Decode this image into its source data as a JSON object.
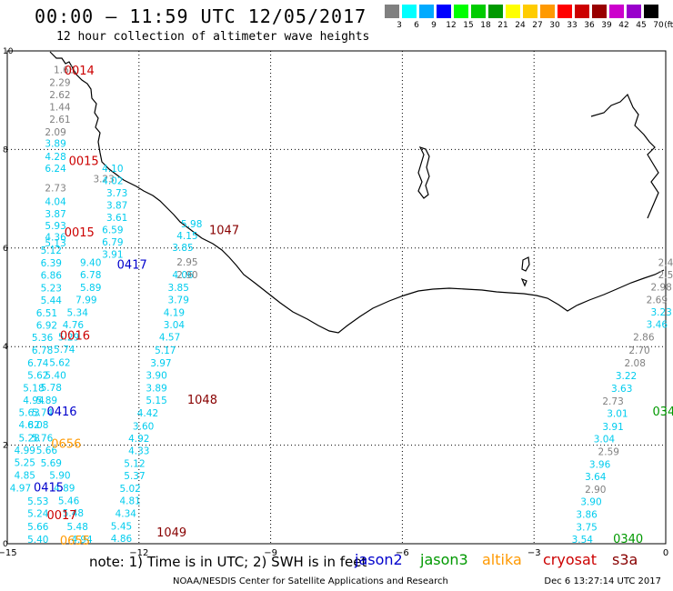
{
  "header": {
    "title": "00:00 – 11:59 UTC 12/05/2017",
    "subtitle": "12 hour collection of altimeter wave heights"
  },
  "legend": {
    "unit": "(ft)",
    "bins": [
      {
        "label": "3",
        "color": "#808080"
      },
      {
        "label": "6",
        "color": "#00ffff"
      },
      {
        "label": "9",
        "color": "#00aaff"
      },
      {
        "label": "12",
        "color": "#0000ff"
      },
      {
        "label": "15",
        "color": "#00ff00"
      },
      {
        "label": "18",
        "color": "#00cc00"
      },
      {
        "label": "21",
        "color": "#009900"
      },
      {
        "label": "24",
        "color": "#ffff00"
      },
      {
        "label": "27",
        "color": "#ffcc00"
      },
      {
        "label": "30",
        "color": "#ff9900"
      },
      {
        "label": "33",
        "color": "#ff0000"
      },
      {
        "label": "36",
        "color": "#cc0000"
      },
      {
        "label": "39",
        "color": "#990000"
      },
      {
        "label": "42",
        "color": "#cc00cc"
      },
      {
        "label": "45",
        "color": "#9900cc"
      },
      {
        "label": "70",
        "color": "#000000"
      }
    ]
  },
  "axes": {
    "lon_ticks": [
      "−15",
      "−12",
      "−9",
      "−6",
      "−3",
      "0"
    ],
    "lat_ticks": [
      "0",
      "2",
      "4",
      "6",
      "8",
      "10"
    ],
    "lon_range": [
      -15,
      0
    ],
    "lat_range": [
      0,
      10
    ],
    "grid": true,
    "grid_style": "dotted"
  },
  "satellites": [
    {
      "name": "jason2",
      "color": "#0000cc"
    },
    {
      "name": "jason3",
      "color": "#009900"
    },
    {
      "name": "altika",
      "color": "#ff9900"
    },
    {
      "name": "cryosat",
      "color": "#cc0000"
    },
    {
      "name": "s3a",
      "color": "#880000"
    }
  ],
  "note": "note:  1) Time is in UTC; 2) SWH is in feet",
  "footer": {
    "credit": "NOAA/NESDIS Center for Satellite Applications and Research",
    "timestamp": "Dec  6 13:27:14 UTC 2017"
  },
  "chart_data": {
    "type": "scatter",
    "unit": "ft",
    "time_labels": [
      {
        "text": "0014",
        "lon": -13.7,
        "lat": 9.52,
        "color": "#cc0000"
      },
      {
        "text": "0015",
        "lon": -13.6,
        "lat": 7.68,
        "color": "#cc0000"
      },
      {
        "text": "0015",
        "lon": -13.7,
        "lat": 6.24,
        "color": "#cc0000"
      },
      {
        "text": "0417",
        "lon": -12.5,
        "lat": 5.58,
        "color": "#0000cc"
      },
      {
        "text": "0016",
        "lon": -13.8,
        "lat": 4.14,
        "color": "#cc0000"
      },
      {
        "text": "0416",
        "lon": -14.1,
        "lat": 2.6,
        "color": "#0000cc"
      },
      {
        "text": "0656",
        "lon": -14.0,
        "lat": 1.95,
        "color": "#ff9900"
      },
      {
        "text": "0415",
        "lon": -14.4,
        "lat": 1.06,
        "color": "#0000cc"
      },
      {
        "text": "0017",
        "lon": -14.1,
        "lat": 0.5,
        "color": "#cc0000"
      },
      {
        "text": "0655",
        "lon": -13.8,
        "lat": -0.02,
        "color": "#ff9900"
      },
      {
        "text": "1047",
        "lon": -10.4,
        "lat": 6.28,
        "color": "#880000"
      },
      {
        "text": "1048",
        "lon": -10.9,
        "lat": 2.84,
        "color": "#880000"
      },
      {
        "text": "1049",
        "lon": -11.6,
        "lat": 0.15,
        "color": "#880000"
      },
      {
        "text": "034",
        "lon": -0.3,
        "lat": 2.6,
        "color": "#009900"
      },
      {
        "text": "0340",
        "lon": -1.2,
        "lat": 0.02,
        "color": "#009900"
      }
    ],
    "tracks": [
      {
        "name": "cryosat pass 0014-0017 (northern part)",
        "color": "#808080",
        "points": [
          {
            "lon": -13.7,
            "lat": 9.55,
            "value": "1.68"
          },
          {
            "lon": -13.8,
            "lat": 9.29,
            "value": "2.29"
          },
          {
            "lon": -13.8,
            "lat": 9.04,
            "value": "2.62"
          },
          {
            "lon": -13.8,
            "lat": 8.79,
            "value": "1.44"
          },
          {
            "lon": -13.8,
            "lat": 8.54,
            "value": "2.61"
          },
          {
            "lon": -13.9,
            "lat": 8.28,
            "value": "2.09"
          },
          {
            "lon": -12.8,
            "lat": 7.33,
            "value": "3.23"
          },
          {
            "lon": -13.9,
            "lat": 7.15,
            "value": "2.73"
          }
        ]
      },
      {
        "name": "cryosat pass 0014-0017 (southern part)",
        "color": "#00ccee",
        "points": [
          {
            "lon": -13.9,
            "lat": 8.05,
            "value": "3.89"
          },
          {
            "lon": -13.9,
            "lat": 7.79,
            "value": "4.28"
          },
          {
            "lon": -13.9,
            "lat": 7.55,
            "value": "6.24"
          },
          {
            "lon": -13.9,
            "lat": 6.87,
            "value": "4.04"
          },
          {
            "lon": -13.9,
            "lat": 6.62,
            "value": "3.87"
          },
          {
            "lon": -13.9,
            "lat": 6.38,
            "value": "5.93"
          },
          {
            "lon": -13.9,
            "lat": 6.15,
            "value": "4.36"
          },
          {
            "lon": -14.0,
            "lat": 5.89,
            "value": "5.12"
          },
          {
            "lon": -14.0,
            "lat": 5.63,
            "value": "6.39"
          },
          {
            "lon": -14.0,
            "lat": 5.38,
            "value": "6.86"
          },
          {
            "lon": -14.0,
            "lat": 5.12,
            "value": "5.23"
          },
          {
            "lon": -14.0,
            "lat": 4.87,
            "value": "5.44"
          },
          {
            "lon": -14.1,
            "lat": 4.61,
            "value": "6.51"
          },
          {
            "lon": -14.1,
            "lat": 4.36,
            "value": "6.92"
          },
          {
            "lon": -14.2,
            "lat": 4.11,
            "value": "5.36"
          },
          {
            "lon": -14.2,
            "lat": 3.86,
            "value": "6.78"
          },
          {
            "lon": -14.3,
            "lat": 3.6,
            "value": "6.74"
          },
          {
            "lon": -14.3,
            "lat": 3.35,
            "value": "5.62"
          },
          {
            "lon": -14.4,
            "lat": 3.09,
            "value": "5.18"
          },
          {
            "lon": -14.4,
            "lat": 2.84,
            "value": "4.94"
          },
          {
            "lon": -14.5,
            "lat": 2.59,
            "value": "5.63"
          },
          {
            "lon": -14.5,
            "lat": 2.34,
            "value": "4.82"
          },
          {
            "lon": -14.5,
            "lat": 2.08,
            "value": "5.28"
          },
          {
            "lon": -14.6,
            "lat": 1.83,
            "value": "4.99"
          },
          {
            "lon": -14.6,
            "lat": 1.58,
            "value": "5.25"
          },
          {
            "lon": -14.6,
            "lat": 1.32,
            "value": "4.85"
          },
          {
            "lon": -14.7,
            "lat": 1.06,
            "value": "4.97"
          },
          {
            "lon": -14.3,
            "lat": 0.79,
            "value": "5.53"
          },
          {
            "lon": -14.3,
            "lat": 0.54,
            "value": "5.24"
          },
          {
            "lon": -14.3,
            "lat": 0.28,
            "value": "5.66"
          },
          {
            "lon": -14.3,
            "lat": 0.02,
            "value": "5.40"
          }
        ]
      },
      {
        "name": "jason2 pass 0415-0417",
        "color": "#00ccee",
        "points": [
          {
            "lon": -13.9,
            "lat": 6.03,
            "value": "5.13"
          },
          {
            "lon": -13.1,
            "lat": 5.39,
            "value": "6.78"
          },
          {
            "lon": -13.1,
            "lat": 5.13,
            "value": "5.89"
          },
          {
            "lon": -13.2,
            "lat": 4.88,
            "value": "7.99"
          },
          {
            "lon": -13.4,
            "lat": 4.62,
            "value": "5.34"
          },
          {
            "lon": -13.5,
            "lat": 4.37,
            "value": "4.76"
          },
          {
            "lon": -13.6,
            "lat": 4.12,
            "value": "5.29"
          },
          {
            "lon": -13.7,
            "lat": 3.87,
            "value": "5.74"
          },
          {
            "lon": -13.8,
            "lat": 3.61,
            "value": "5.62"
          },
          {
            "lon": -13.9,
            "lat": 3.35,
            "value": "5.40"
          },
          {
            "lon": -14.0,
            "lat": 3.1,
            "value": "5.78"
          },
          {
            "lon": -14.1,
            "lat": 2.84,
            "value": "5.89"
          },
          {
            "lon": -14.2,
            "lat": 2.59,
            "value": "5.74"
          },
          {
            "lon": -14.3,
            "lat": 2.34,
            "value": "6.08"
          },
          {
            "lon": -14.2,
            "lat": 2.08,
            "value": "5.76"
          },
          {
            "lon": -14.1,
            "lat": 1.83,
            "value": "5.66"
          },
          {
            "lon": -14.0,
            "lat": 1.57,
            "value": "5.69"
          },
          {
            "lon": -13.8,
            "lat": 1.32,
            "value": "5.90"
          },
          {
            "lon": -13.7,
            "lat": 1.06,
            "value": "4.89"
          },
          {
            "lon": -13.6,
            "lat": 0.8,
            "value": "5.46"
          },
          {
            "lon": -13.5,
            "lat": 0.55,
            "value": "5.48"
          },
          {
            "lon": -13.4,
            "lat": 0.28,
            "value": "5.48"
          },
          {
            "lon": -13.3,
            "lat": 0.02,
            "value": "4.94"
          },
          {
            "lon": -13.1,
            "lat": 5.64,
            "value": "9.40"
          }
        ]
      },
      {
        "name": "s3a pass 1047-1049",
        "color": "#00ccee",
        "points": [
          {
            "lon": -12.6,
            "lat": 7.55,
            "value": "4.10"
          },
          {
            "lon": -12.6,
            "lat": 7.3,
            "value": "4.02"
          },
          {
            "lon": -12.5,
            "lat": 7.05,
            "value": "3.73"
          },
          {
            "lon": -12.5,
            "lat": 6.8,
            "value": "3.87"
          },
          {
            "lon": -12.5,
            "lat": 6.55,
            "value": "3.61"
          },
          {
            "lon": -12.6,
            "lat": 6.3,
            "value": "6.59"
          },
          {
            "lon": -12.6,
            "lat": 6.05,
            "value": "6.79"
          },
          {
            "lon": -12.6,
            "lat": 5.8,
            "value": "3.91"
          },
          {
            "lon": -10.8,
            "lat": 6.42,
            "value": "5.98"
          },
          {
            "lon": -10.9,
            "lat": 6.18,
            "value": "4.15"
          },
          {
            "lon": -11.0,
            "lat": 5.94,
            "value": "3.85"
          },
          {
            "lon": -11.0,
            "lat": 5.39,
            "value": "4.06"
          },
          {
            "lon": -11.1,
            "lat": 5.13,
            "value": "3.85"
          },
          {
            "lon": -11.1,
            "lat": 4.88,
            "value": "3.79"
          },
          {
            "lon": -11.2,
            "lat": 4.62,
            "value": "4.19"
          },
          {
            "lon": -11.2,
            "lat": 4.37,
            "value": "3.04"
          },
          {
            "lon": -11.3,
            "lat": 4.12,
            "value": "4.57"
          },
          {
            "lon": -11.4,
            "lat": 3.86,
            "value": "5.17"
          },
          {
            "lon": -11.5,
            "lat": 3.6,
            "value": "3.97"
          },
          {
            "lon": -11.6,
            "lat": 3.35,
            "value": "3.90"
          },
          {
            "lon": -11.6,
            "lat": 3.09,
            "value": "3.89"
          },
          {
            "lon": -11.6,
            "lat": 2.84,
            "value": "5.15"
          },
          {
            "lon": -11.8,
            "lat": 2.58,
            "value": "4.42"
          },
          {
            "lon": -11.9,
            "lat": 2.32,
            "value": "3.60"
          },
          {
            "lon": -12.0,
            "lat": 2.07,
            "value": "4.92"
          },
          {
            "lon": -12.0,
            "lat": 1.82,
            "value": "4.33"
          },
          {
            "lon": -12.1,
            "lat": 1.56,
            "value": "5.12"
          },
          {
            "lon": -12.1,
            "lat": 1.31,
            "value": "5.37"
          },
          {
            "lon": -12.2,
            "lat": 1.05,
            "value": "5.02"
          },
          {
            "lon": -12.2,
            "lat": 0.8,
            "value": "4.81"
          },
          {
            "lon": -12.3,
            "lat": 0.54,
            "value": "4.34"
          },
          {
            "lon": -12.4,
            "lat": 0.29,
            "value": "5.45"
          },
          {
            "lon": -12.4,
            "lat": 0.04,
            "value": "4.86"
          }
        ]
      },
      {
        "name": "s3a (grey)",
        "color": "#808080",
        "points": [
          {
            "lon": -10.9,
            "lat": 5.65,
            "value": "2.95"
          },
          {
            "lon": -10.9,
            "lat": 5.39,
            "value": "2.90"
          }
        ]
      },
      {
        "name": "jason3 pass 0340",
        "color": "#00ccee",
        "points": [
          {
            "lon": -0.1,
            "lat": 4.63,
            "value": "3.23"
          },
          {
            "lon": -0.2,
            "lat": 4.38,
            "value": "3.46"
          },
          {
            "lon": -0.9,
            "lat": 3.34,
            "value": "3.22"
          },
          {
            "lon": -1.0,
            "lat": 3.08,
            "value": "3.63"
          },
          {
            "lon": -1.1,
            "lat": 2.57,
            "value": "3.01"
          },
          {
            "lon": -1.2,
            "lat": 2.31,
            "value": "3.91"
          },
          {
            "lon": -1.4,
            "lat": 2.06,
            "value": "3.04"
          },
          {
            "lon": -1.5,
            "lat": 1.54,
            "value": "3.96"
          },
          {
            "lon": -1.6,
            "lat": 1.29,
            "value": "3.64"
          },
          {
            "lon": -1.7,
            "lat": 0.78,
            "value": "3.90"
          },
          {
            "lon": -1.8,
            "lat": 0.53,
            "value": "3.86"
          },
          {
            "lon": -1.8,
            "lat": 0.27,
            "value": "3.75"
          },
          {
            "lon": -1.9,
            "lat": 0.02,
            "value": "3.54"
          },
          {
            "lon": -2.0,
            "lat": -0.23,
            "value": "3.81"
          },
          {
            "lon": -2.0,
            "lat": -0.48,
            "value": "3.79"
          },
          {
            "lon": -2.1,
            "lat": -0.74,
            "value": "4.19"
          },
          {
            "lon": -2.2,
            "lat": -0.99,
            "value": "4.01"
          }
        ]
      },
      {
        "name": "jason3 pass 0340 (grey)",
        "color": "#808080",
        "points": [
          {
            "lon": 0.0,
            "lat": 5.64,
            "value": "2.4"
          },
          {
            "lon": 0.0,
            "lat": 5.39,
            "value": "2.5"
          },
          {
            "lon": -0.1,
            "lat": 5.14,
            "value": "2.98"
          },
          {
            "lon": -0.2,
            "lat": 4.88,
            "value": "2.69"
          },
          {
            "lon": -0.5,
            "lat": 4.12,
            "value": "2.86"
          },
          {
            "lon": -0.6,
            "lat": 3.86,
            "value": "2.70"
          },
          {
            "lon": -0.7,
            "lat": 3.6,
            "value": "2.08"
          },
          {
            "lon": -1.2,
            "lat": 2.82,
            "value": "2.73"
          },
          {
            "lon": -1.3,
            "lat": 1.8,
            "value": "2.59"
          },
          {
            "lon": -1.6,
            "lat": 1.03,
            "value": "2.90"
          }
        ]
      }
    ]
  }
}
